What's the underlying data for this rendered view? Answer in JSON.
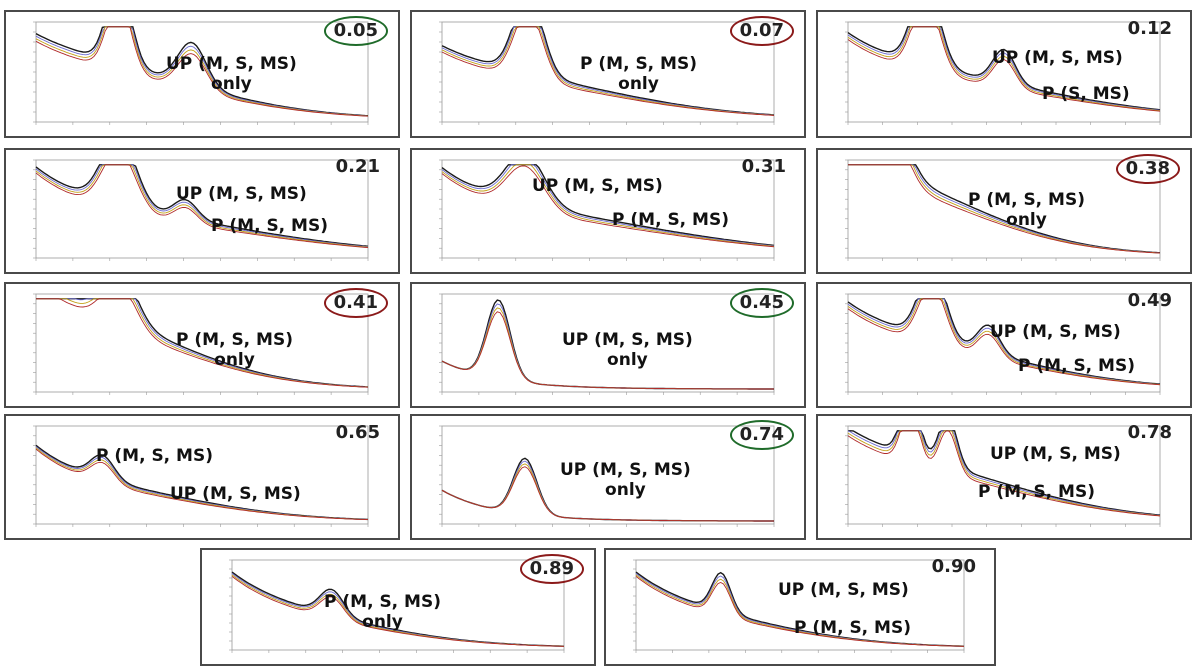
{
  "chart_data": [
    {
      "type": "line",
      "value": "0.05",
      "highlight": "green",
      "label_lines": [
        "UP (M, S, MS)",
        "only"
      ]
    },
    {
      "type": "line",
      "value": "0.07",
      "highlight": "red",
      "label_lines": [
        "P (M, S, MS)",
        "only"
      ]
    },
    {
      "type": "line",
      "value": "0.12",
      "highlight": "none",
      "annotations": [
        "UP (M, S, MS)",
        "P (S, MS)"
      ]
    },
    {
      "type": "line",
      "value": "0.21",
      "highlight": "none",
      "annotations": [
        "UP (M, S, MS)",
        "P (M, S, MS)"
      ]
    },
    {
      "type": "line",
      "value": "0.31",
      "highlight": "none",
      "annotations": [
        "UP (M, S, MS)",
        "P (M, S, MS)"
      ]
    },
    {
      "type": "line",
      "value": "0.38",
      "highlight": "red",
      "label_lines": [
        "P (M, S, MS)",
        "only"
      ]
    },
    {
      "type": "line",
      "value": "0.41",
      "highlight": "red",
      "label_lines": [
        "P (M, S, MS)",
        "only"
      ]
    },
    {
      "type": "line",
      "value": "0.45",
      "highlight": "green",
      "label_lines": [
        "UP (M, S, MS)",
        "only"
      ]
    },
    {
      "type": "line",
      "value": "0.49",
      "highlight": "none",
      "annotations": [
        "UP (M, S, MS)",
        "P (M, S, MS)"
      ]
    },
    {
      "type": "line",
      "value": "0.65",
      "highlight": "none",
      "annotations": [
        "P (M, S, MS)",
        "UP (M, S, MS)"
      ]
    },
    {
      "type": "line",
      "value": "0.74",
      "highlight": "green",
      "label_lines": [
        "UP (M, S, MS)",
        "only"
      ]
    },
    {
      "type": "line",
      "value": "0.78",
      "highlight": "none",
      "annotations": [
        "UP (M, S, MS)",
        "P (M, S, MS)"
      ]
    },
    {
      "type": "line",
      "value": "0.89",
      "highlight": "red",
      "label_lines": [
        "P (M, S, MS)",
        "only"
      ]
    },
    {
      "type": "line",
      "value": "0.90",
      "highlight": "none",
      "annotations": [
        "UP (M, S, MS)",
        "P (M, S, MS)"
      ]
    }
  ],
  "colors": {
    "green_ring": "#1f6b2a",
    "red_ring": "#8b1a1a",
    "frame": "#4a4a4a"
  }
}
